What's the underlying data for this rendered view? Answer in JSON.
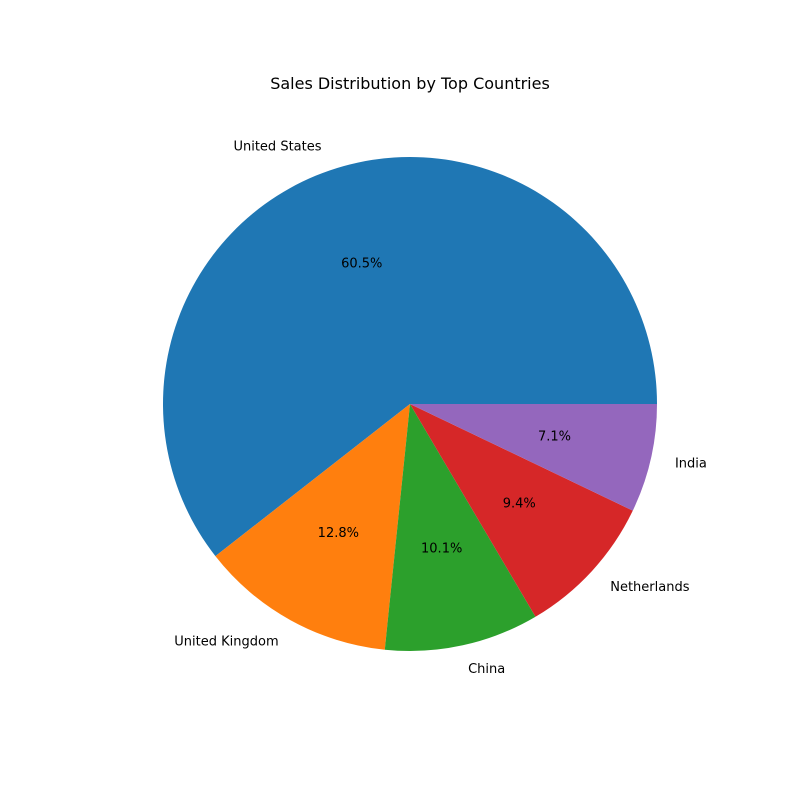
{
  "chart_data": {
    "type": "pie",
    "title": "Sales Distribution by Top Countries",
    "categories": [
      "United States",
      "United Kingdom",
      "China",
      "Netherlands",
      "India"
    ],
    "values": [
      60.5,
      12.8,
      10.1,
      9.4,
      7.1
    ],
    "percent_labels": [
      "60.5%",
      "12.8%",
      "10.1%",
      "9.4%",
      "7.1%"
    ],
    "colors": [
      "#1f77b4",
      "#ff7f0e",
      "#2ca02c",
      "#d62728",
      "#9467bd"
    ],
    "start_angle_deg": 0,
    "direction": "counterclockwise",
    "legend": "none"
  }
}
